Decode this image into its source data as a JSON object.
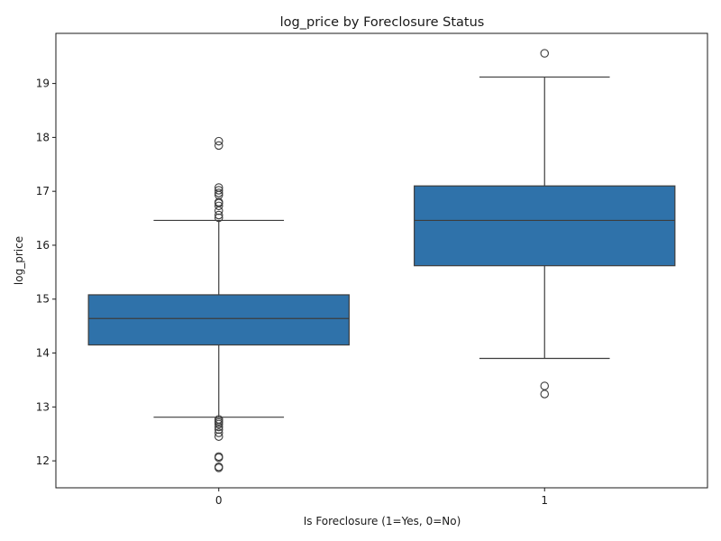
{
  "chart_data": {
    "type": "boxplot",
    "title": "log_price by Foreclosure Status",
    "xlabel": "Is Foreclosure (1=Yes, 0=No)",
    "ylabel": "log_price",
    "categories": [
      "0",
      "1"
    ],
    "ylim": [
      11.5,
      19.93
    ],
    "yticks": [
      12,
      13,
      14,
      15,
      16,
      17,
      18,
      19
    ],
    "grid": false,
    "legend": "none",
    "box_color": "#2f72aa",
    "line_color": "#3d3d3d",
    "boxes": [
      {
        "category": "0",
        "whisker_low": 12.81,
        "q1": 14.15,
        "median": 14.64,
        "q3": 15.08,
        "whisker_high": 16.46,
        "outliers": [
          11.87,
          11.89,
          12.06,
          12.08,
          12.45,
          12.52,
          12.58,
          12.63,
          12.68,
          12.71,
          12.74,
          12.77,
          16.51,
          16.56,
          16.64,
          16.73,
          16.78,
          16.8,
          16.93,
          16.97,
          17.02,
          17.07,
          17.85,
          17.93
        ]
      },
      {
        "category": "1",
        "whisker_low": 13.9,
        "q1": 15.62,
        "median": 16.46,
        "q3": 17.1,
        "whisker_high": 19.12,
        "outliers": [
          13.24,
          13.39,
          19.56
        ]
      }
    ]
  }
}
